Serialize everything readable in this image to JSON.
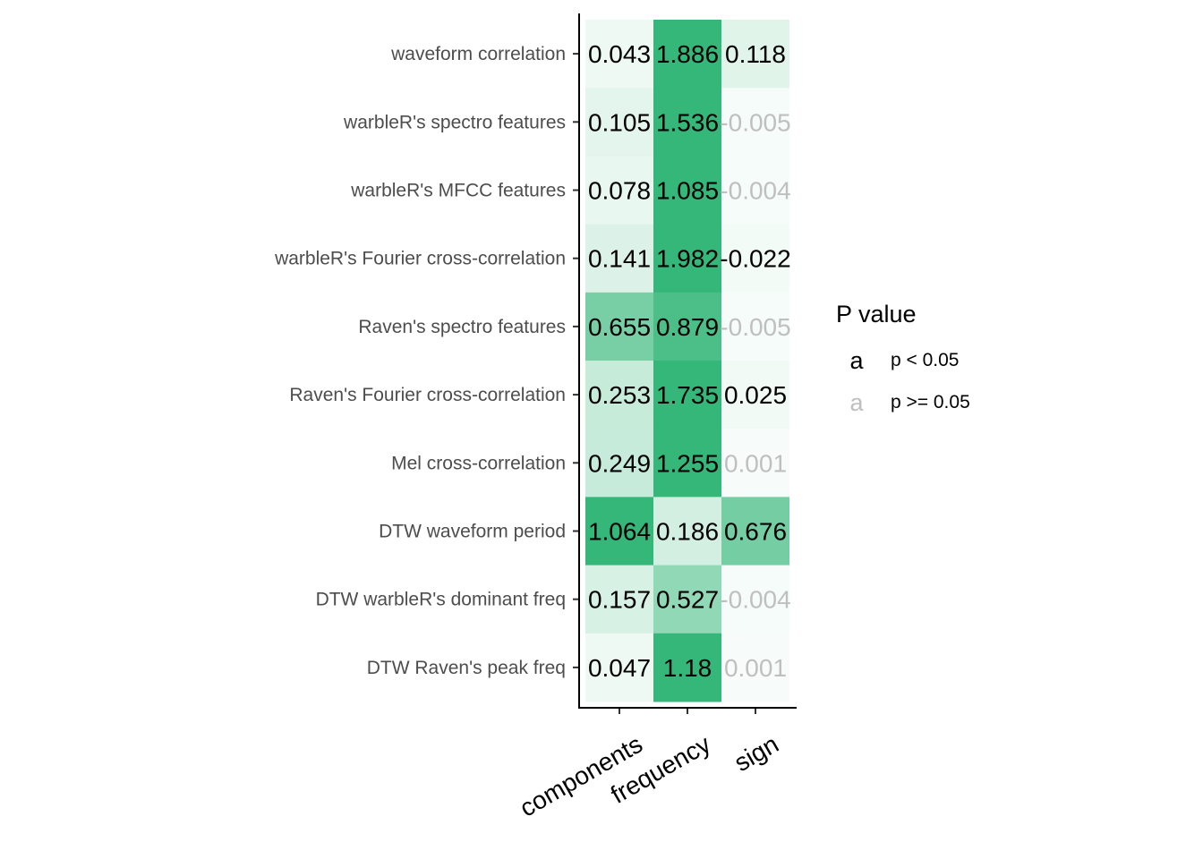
{
  "chart_data": {
    "type": "heatmap",
    "rows": [
      "waveform correlation",
      "warbleR's spectro features",
      "warbleR's MFCC features",
      "warbleR's Fourier cross-correlation",
      "Raven's spectro features",
      "Raven's Fourier cross-correlation",
      "Mel cross-correlation",
      "DTW waveform period",
      "DTW warbleR's dominant freq",
      "DTW Raven's peak freq"
    ],
    "columns": [
      "components",
      "frequency",
      "sign"
    ],
    "cells": [
      [
        {
          "label": "0.043",
          "value": 0.043,
          "significant": true
        },
        {
          "label": "1.886",
          "value": 1.886,
          "significant": true
        },
        {
          "label": "0.118",
          "value": 0.118,
          "significant": true
        }
      ],
      [
        {
          "label": "0.105",
          "value": 0.105,
          "significant": true
        },
        {
          "label": "1.536",
          "value": 1.536,
          "significant": true
        },
        {
          "label": "-0.005",
          "value": -0.005,
          "significant": false
        }
      ],
      [
        {
          "label": "0.078",
          "value": 0.078,
          "significant": true
        },
        {
          "label": "1.085",
          "value": 1.085,
          "significant": true
        },
        {
          "label": "-0.004",
          "value": -0.004,
          "significant": false
        }
      ],
      [
        {
          "label": "0.141",
          "value": 0.141,
          "significant": true
        },
        {
          "label": "1.982",
          "value": 1.982,
          "significant": true
        },
        {
          "label": "-0.022",
          "value": -0.022,
          "significant": true
        }
      ],
      [
        {
          "label": "0.655",
          "value": 0.655,
          "significant": true
        },
        {
          "label": "0.879",
          "value": 0.879,
          "significant": true
        },
        {
          "label": "-0.005",
          "value": -0.005,
          "significant": false
        }
      ],
      [
        {
          "label": "0.253",
          "value": 0.253,
          "significant": true
        },
        {
          "label": "1.735",
          "value": 1.735,
          "significant": true
        },
        {
          "label": "0.025",
          "value": 0.025,
          "significant": true
        }
      ],
      [
        {
          "label": "0.249",
          "value": 0.249,
          "significant": true
        },
        {
          "label": "1.255",
          "value": 1.255,
          "significant": true
        },
        {
          "label": "0.001",
          "value": 0.001,
          "significant": false
        }
      ],
      [
        {
          "label": "1.064",
          "value": 1.064,
          "significant": true
        },
        {
          "label": "0.186",
          "value": 0.186,
          "significant": true
        },
        {
          "label": "0.676",
          "value": 0.676,
          "significant": true
        }
      ],
      [
        {
          "label": "0.157",
          "value": 0.157,
          "significant": true
        },
        {
          "label": "0.527",
          "value": 0.527,
          "significant": true
        },
        {
          "label": "-0.004",
          "value": -0.004,
          "significant": false
        }
      ],
      [
        {
          "label": "0.047",
          "value": 0.047,
          "significant": true
        },
        {
          "label": "1.18",
          "value": 1.18,
          "significant": true
        },
        {
          "label": "0.001",
          "value": 0.001,
          "significant": false
        }
      ]
    ],
    "color_scale": {
      "low": "#ffffff",
      "high": "#35b779",
      "saturate_at": 1.0
    },
    "significant_text_color": "#000000",
    "nonsignificant_text_color": "#bfbfbf",
    "legend": {
      "title": "P value",
      "placement": "right",
      "entries": [
        {
          "key": "a",
          "label": "p < 0.05",
          "color": "#000000"
        },
        {
          "key": "a",
          "label": "p >= 0.05",
          "color": "#bfbfbf"
        }
      ]
    }
  }
}
